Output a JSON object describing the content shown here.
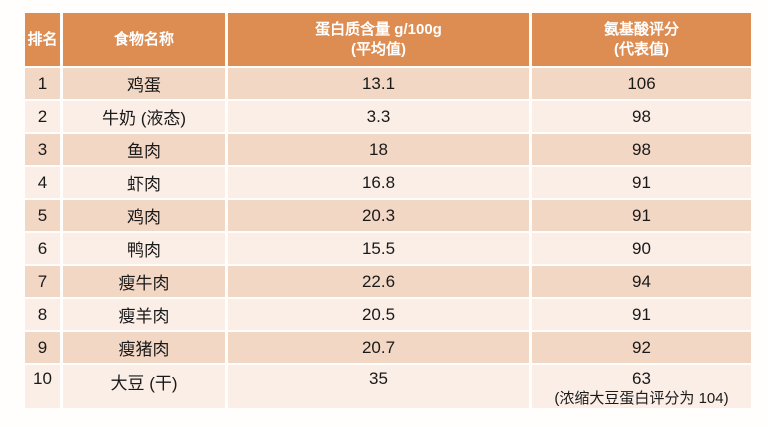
{
  "colors": {
    "header_bg": "#DD8C52",
    "row_dark_bg": "#F3D7C5",
    "row_light_bg": "#FBEEE6",
    "header_text": "#FFFFFF",
    "body_text": "#1A1A1A",
    "page_bg": "#FFFFFF"
  },
  "chart_data": {
    "type": "table",
    "columns": [
      {
        "label": "排名"
      },
      {
        "label": "食物名称"
      },
      {
        "label": "蛋白质含量 g/100g",
        "sublabel": "(平均值)"
      },
      {
        "label": "氨基酸评分",
        "sublabel": "(代表值)"
      }
    ],
    "rows": [
      {
        "rank": "1",
        "food": "鸡蛋",
        "protein": "13.1",
        "score": "106"
      },
      {
        "rank": "2",
        "food": "牛奶 (液态)",
        "protein": "3.3",
        "score": "98"
      },
      {
        "rank": "3",
        "food": "鱼肉",
        "protein": "18",
        "score": "98"
      },
      {
        "rank": "4",
        "food": "虾肉",
        "protein": "16.8",
        "score": "91"
      },
      {
        "rank": "5",
        "food": "鸡肉",
        "protein": "20.3",
        "score": "91"
      },
      {
        "rank": "6",
        "food": "鸭肉",
        "protein": "15.5",
        "score": "90"
      },
      {
        "rank": "7",
        "food": "瘦牛肉",
        "protein": "22.6",
        "score": "94"
      },
      {
        "rank": "8",
        "food": "瘦羊肉",
        "protein": "20.5",
        "score": "91"
      },
      {
        "rank": "9",
        "food": "瘦猪肉",
        "protein": "20.7",
        "score": "92"
      },
      {
        "rank": "10",
        "food": "大豆 (干)",
        "protein": "35",
        "score": "63",
        "score_note": "(浓缩大豆蛋白评分为 104)"
      }
    ]
  }
}
